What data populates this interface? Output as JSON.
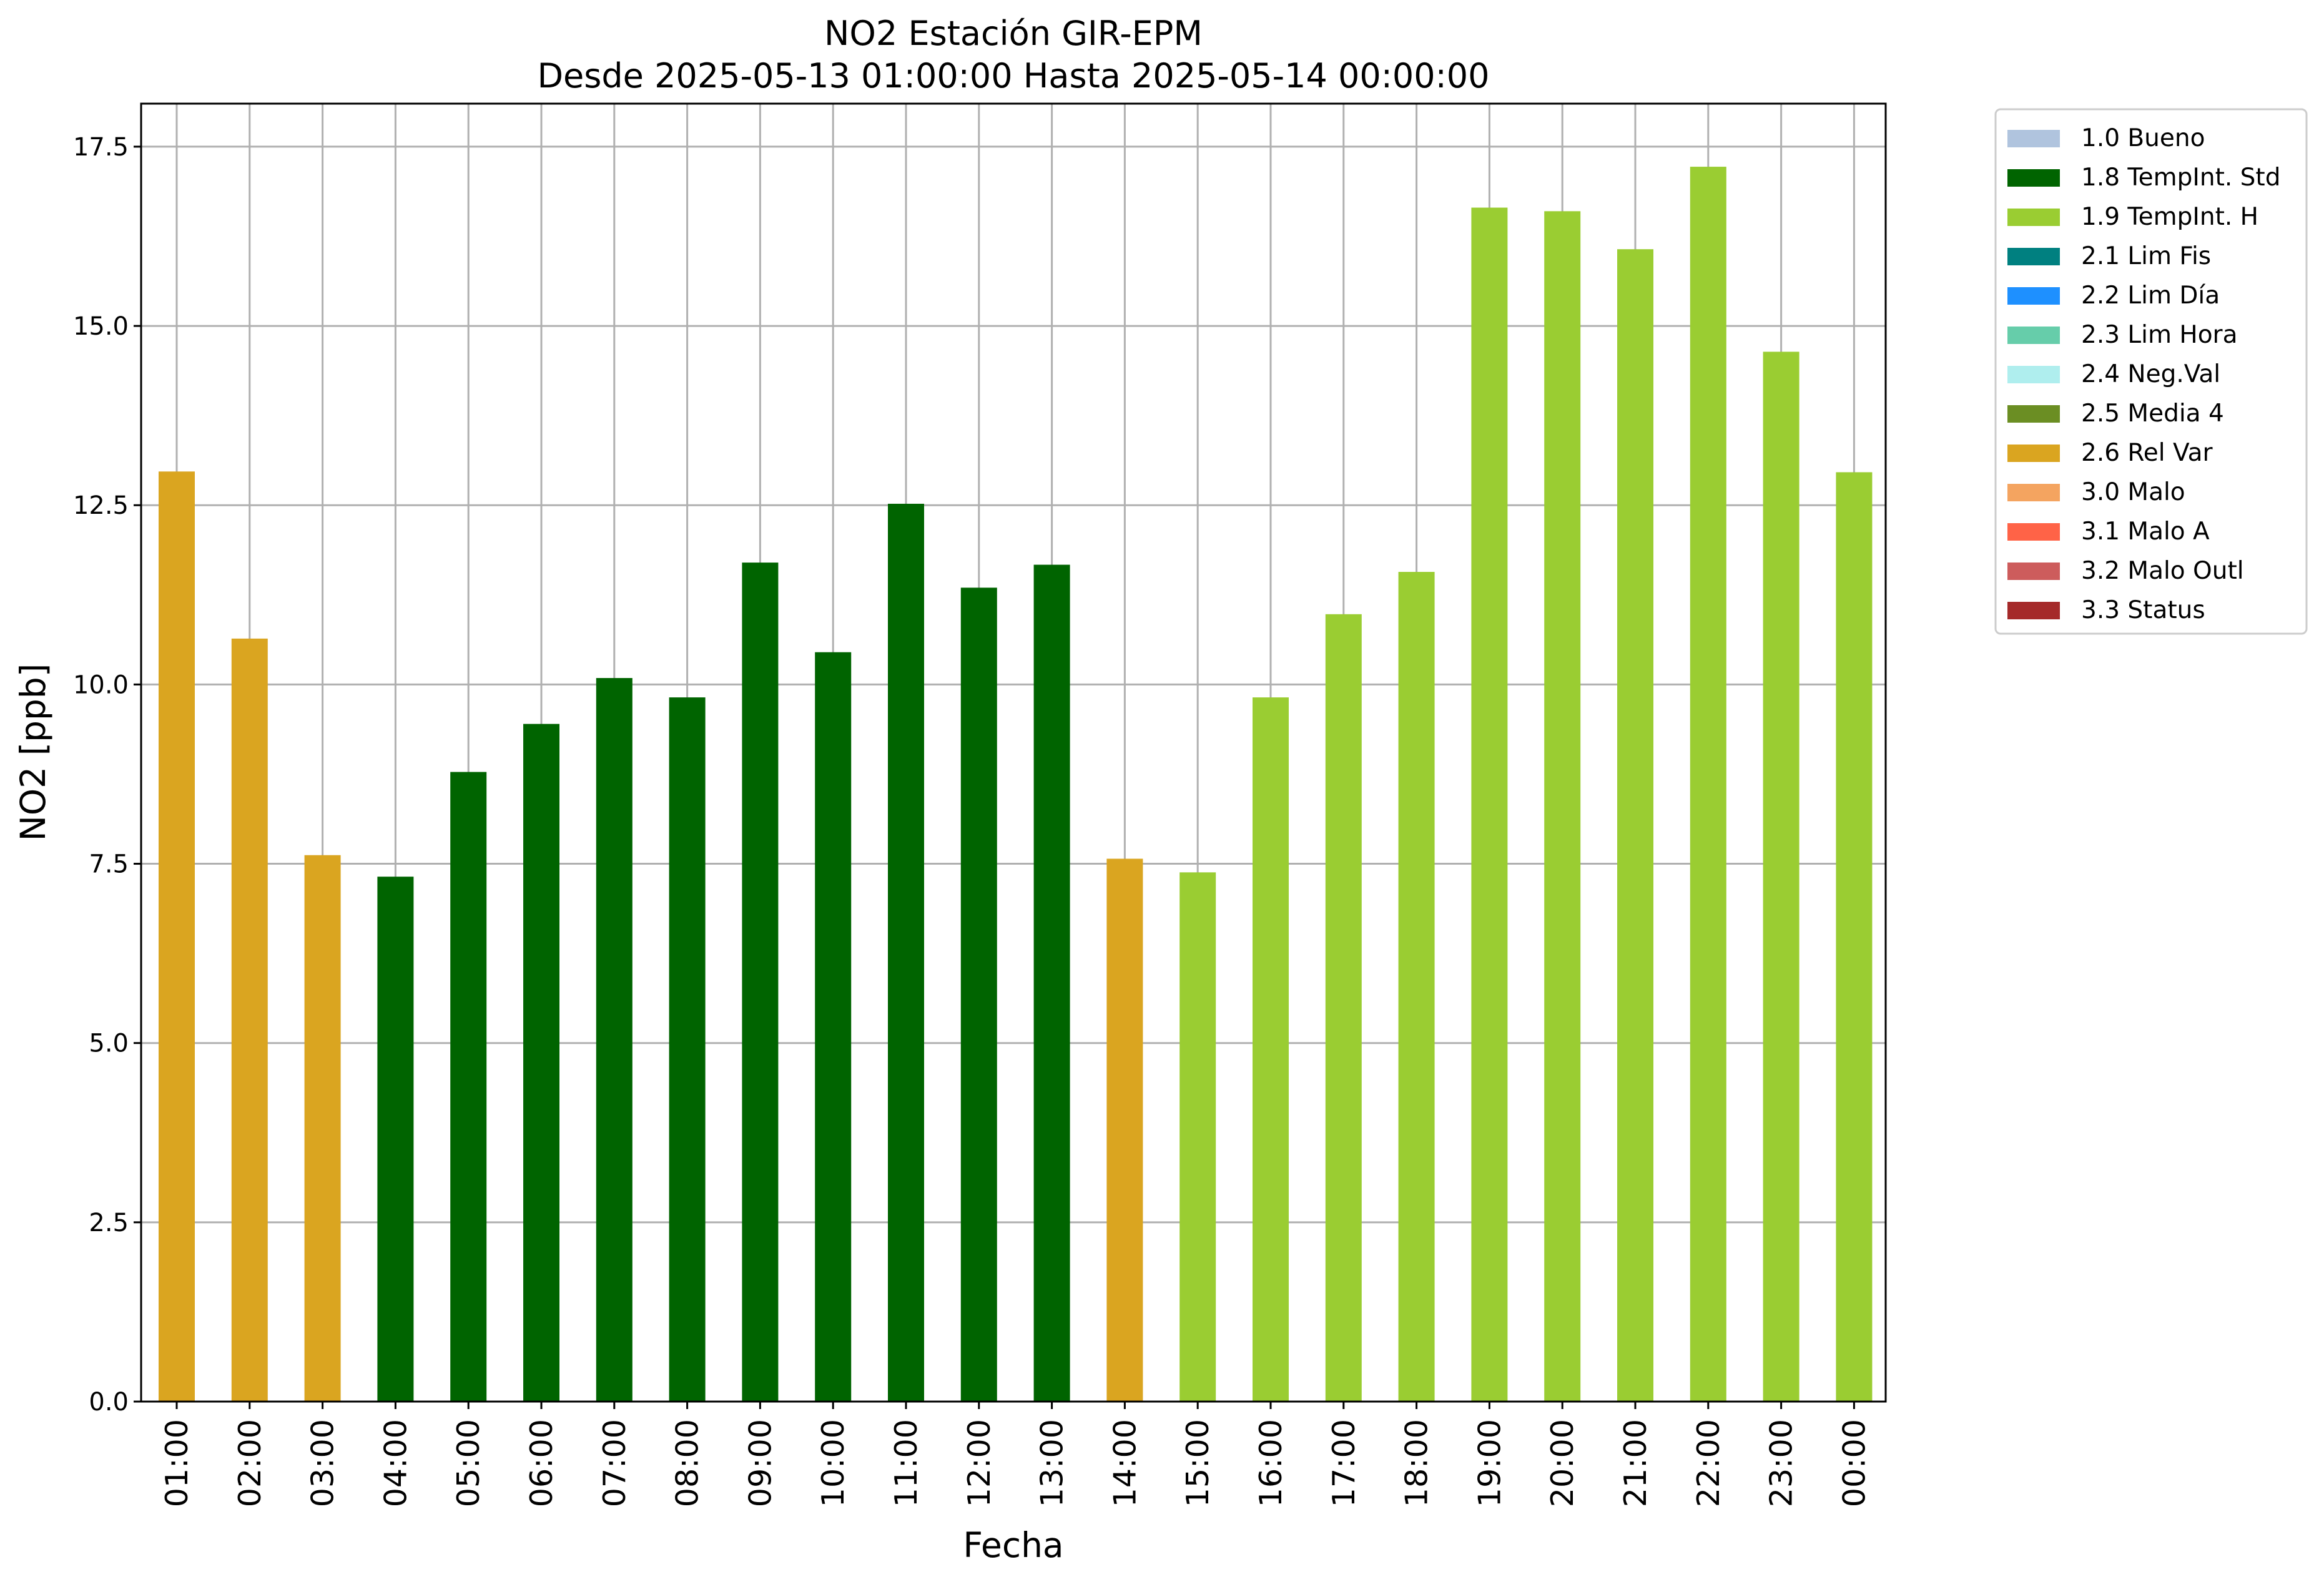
{
  "chart_data": {
    "type": "bar",
    "title": "NO2 Estación GIR-EPM",
    "subtitle": "Desde 2025-05-13 01:00:00 Hasta 2025-05-14 00:00:00",
    "xlabel": "Fecha",
    "ylabel": "NO2 [ppb]",
    "ylim": [
      0,
      18.1
    ],
    "yticks": [
      "0.0",
      "2.5",
      "5.0",
      "7.5",
      "10.0",
      "12.5",
      "15.0",
      "17.5"
    ],
    "grid": true,
    "legend_position": "outside-top-right",
    "categories": [
      "01:00",
      "02:00",
      "03:00",
      "04:00",
      "05:00",
      "06:00",
      "07:00",
      "08:00",
      "09:00",
      "10:00",
      "11:00",
      "12:00",
      "13:00",
      "14:00",
      "15:00",
      "16:00",
      "17:00",
      "18:00",
      "19:00",
      "20:00",
      "21:00",
      "22:00",
      "23:00",
      "00:00"
    ],
    "values": [
      12.97,
      10.64,
      7.62,
      7.32,
      8.78,
      9.45,
      10.09,
      9.82,
      11.7,
      10.45,
      12.52,
      11.35,
      11.67,
      7.57,
      7.38,
      9.82,
      10.98,
      11.57,
      16.65,
      16.6,
      16.07,
      17.22,
      14.64,
      12.96
    ],
    "flags": [
      "2.6 Rel Var",
      "2.6 Rel Var",
      "2.6 Rel Var",
      "1.8 TempInt. Std",
      "1.8 TempInt. Std",
      "1.8 TempInt. Std",
      "1.8 TempInt. Std",
      "1.8 TempInt. Std",
      "1.8 TempInt. Std",
      "1.8 TempInt. Std",
      "1.8 TempInt. Std",
      "1.8 TempInt. Std",
      "1.8 TempInt. Std",
      "2.6 Rel Var",
      "1.9 TempInt. H",
      "1.9 TempInt. H",
      "1.9 TempInt. H",
      "1.9 TempInt. H",
      "1.9 TempInt. H",
      "1.9 TempInt. H",
      "1.9 TempInt. H",
      "1.9 TempInt. H",
      "1.9 TempInt. H",
      "1.9 TempInt. H"
    ],
    "legend": [
      {
        "label": "1.0 Bueno",
        "color": "#b0c4de"
      },
      {
        "label": "1.8 TempInt. Std",
        "color": "#006400"
      },
      {
        "label": "1.9 TempInt. H",
        "color": "#9acd32"
      },
      {
        "label": "2.1 Lim Fis",
        "color": "#008080"
      },
      {
        "label": "2.2 Lim Día",
        "color": "#1e90ff"
      },
      {
        "label": "2.3 Lim Hora",
        "color": "#66cdaa"
      },
      {
        "label": "2.4 Neg.Val",
        "color": "#afeeee"
      },
      {
        "label": "2.5 Media 4",
        "color": "#6b8e23"
      },
      {
        "label": "2.6 Rel Var",
        "color": "#daa520"
      },
      {
        "label": "3.0 Malo",
        "color": "#f4a460"
      },
      {
        "label": "3.1 Malo A",
        "color": "#ff6347"
      },
      {
        "label": "3.2 Malo Outl",
        "color": "#cd5c5c"
      },
      {
        "label": "3.3 Status",
        "color": "#a52a2a"
      }
    ]
  }
}
